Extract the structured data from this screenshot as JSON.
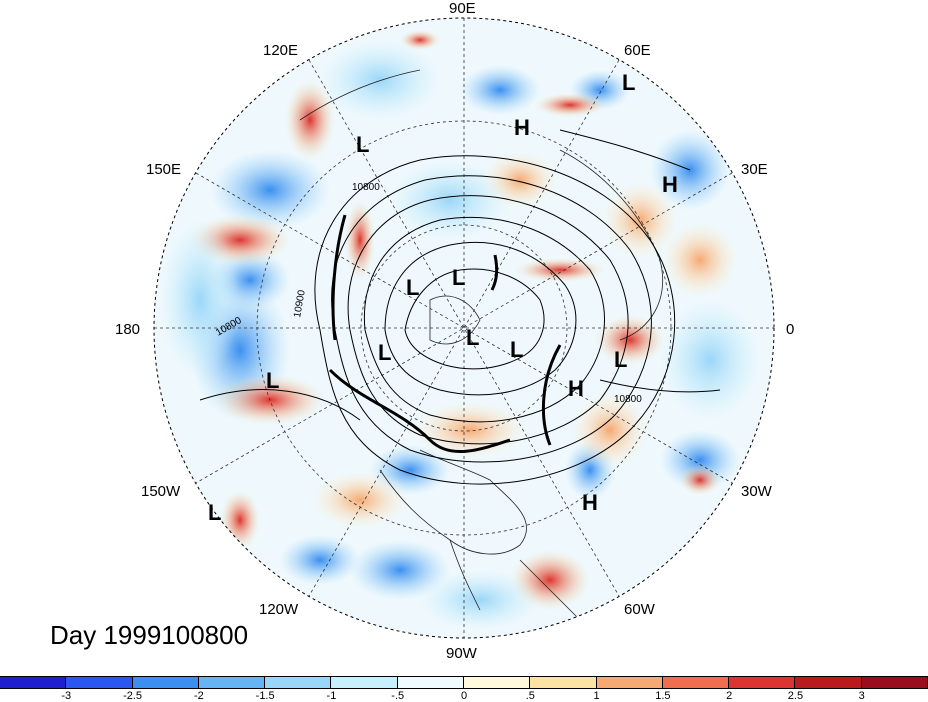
{
  "title": "Day 1999100800",
  "longitude_labels": [
    "90E",
    "60E",
    "30E",
    "0",
    "30W",
    "60W",
    "90W",
    "120W",
    "150W",
    "180",
    "150E",
    "120E"
  ],
  "contour_labels": [
    "10800",
    "10900",
    "10800",
    "10800"
  ],
  "pressure_centers": [
    {
      "type": "L"
    },
    {
      "type": "L"
    },
    {
      "type": "H"
    },
    {
      "type": "H"
    },
    {
      "type": "L"
    },
    {
      "type": "L"
    },
    {
      "type": "L"
    },
    {
      "type": "L"
    },
    {
      "type": "L"
    },
    {
      "type": "L"
    },
    {
      "type": "L"
    },
    {
      "type": "H"
    },
    {
      "type": "H"
    },
    {
      "type": "L"
    },
    {
      "type": "L"
    }
  ],
  "colorbar": {
    "ticks": [
      "-3",
      "-2.5",
      "-2",
      "-1.5",
      "-1",
      "-.5",
      "0",
      ".5",
      "1",
      "1.5",
      "2",
      "2.5",
      "3"
    ],
    "colors": [
      "#1f1fd0",
      "#2b56f0",
      "#3b8ff0",
      "#66b3f5",
      "#9ad6f8",
      "#c7effc",
      "#f0fbff",
      "#fffadb",
      "#fbe3a3",
      "#f6a972",
      "#f06e4f",
      "#dc3430",
      "#b81a1d",
      "#9a0d1c"
    ]
  }
}
